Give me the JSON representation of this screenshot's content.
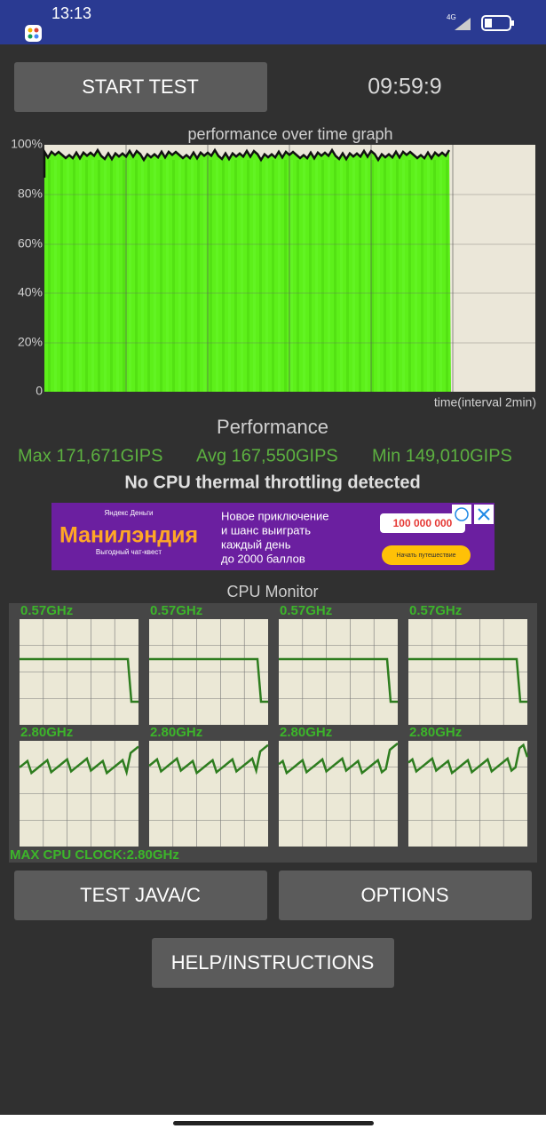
{
  "status_bar": {
    "time": "13:13",
    "network": "4G"
  },
  "header": {
    "start_button": "START TEST",
    "timer": "09:59:9"
  },
  "graph": {
    "title": "performance over time graph",
    "y_labels": [
      "100%",
      "80%",
      "60%",
      "40%",
      "20%",
      "0"
    ],
    "x_label": "time(interval 2min)"
  },
  "performance": {
    "heading": "Performance",
    "max": "Max 171,671GIPS",
    "avg": "Avg 167,550GIPS",
    "min": "Min 149,010GIPS",
    "throttling": "No CPU thermal throttling detected"
  },
  "ad": {
    "brand": "Яндекс Деньги",
    "title": "Манилэндия",
    "tagline": "Выгодный чат-квест",
    "lines": [
      "Новое приключение",
      "и шанс выиграть",
      "каждый день",
      "до 2000 баллов"
    ],
    "prize": "100 000 000",
    "button": "Начать путешествие"
  },
  "cpu_monitor": {
    "title": "CPU Monitor",
    "cores": [
      {
        "label": "0.57GHz"
      },
      {
        "label": "0.57GHz"
      },
      {
        "label": "0.57GHz"
      },
      {
        "label": "0.57GHz"
      },
      {
        "label": "2.80GHz"
      },
      {
        "label": "2.80GHz"
      },
      {
        "label": "2.80GHz"
      },
      {
        "label": "2.80GHz"
      }
    ],
    "max_clock": "MAX CPU CLOCK:2.80GHz"
  },
  "buttons": {
    "test": "TEST JAVA/C",
    "options": "OPTIONS",
    "help": "HELP/INSTRUCTIONS"
  }
}
